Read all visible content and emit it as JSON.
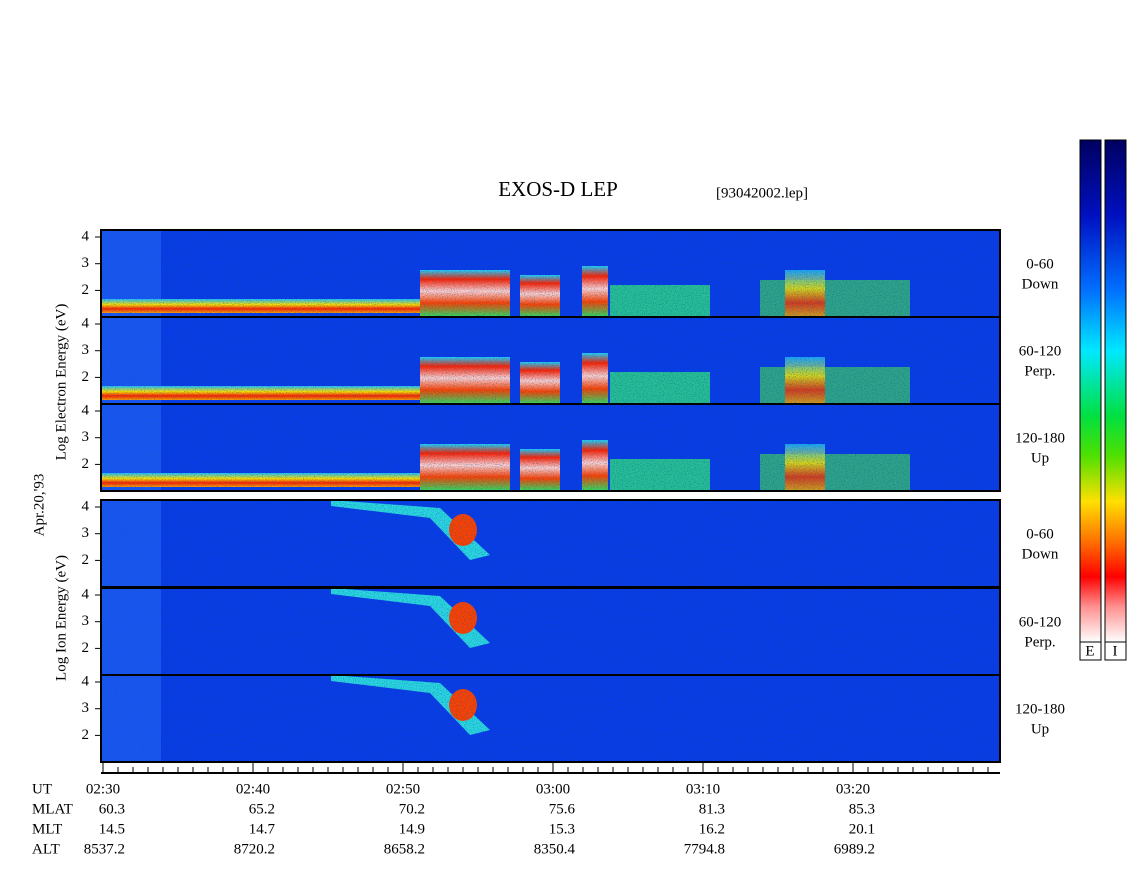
{
  "title": "EXOS-D LEP",
  "file": "[93042002.lep]",
  "date": "Apr.20,'93",
  "electron": {
    "axis_label": "Log Electron Energy (eV)",
    "panels": [
      {
        "range": "0-60",
        "direction": "Down",
        "ticks": [
          4,
          3,
          2
        ]
      },
      {
        "range": "60-120",
        "direction": "Perp.",
        "ticks": [
          4,
          3,
          2
        ]
      },
      {
        "range": "120-180",
        "direction": "Up",
        "ticks": [
          4,
          3,
          2
        ]
      }
    ]
  },
  "ion": {
    "axis_label": "Log Ion Energy (eV)",
    "panels": [
      {
        "range": "0-60",
        "direction": "Down",
        "ticks": [
          4,
          3,
          2
        ]
      },
      {
        "range": "60-120",
        "direction": "Perp.",
        "ticks": [
          4,
          3,
          2
        ]
      },
      {
        "range": "120-180",
        "direction": "Up",
        "ticks": [
          4,
          3,
          2
        ]
      }
    ]
  },
  "orbit": [
    {
      "label": "UT",
      "values": [
        "02:30",
        "02:40",
        "02:50",
        "03:00",
        "03:10",
        "03:20"
      ]
    },
    {
      "label": "MLAT",
      "values": [
        60.3,
        65.2,
        70.2,
        75.6,
        81.3,
        85.3
      ]
    },
    {
      "label": "MLT",
      "values": [
        14.5,
        14.7,
        14.9,
        15.3,
        16.2,
        20.1
      ]
    },
    {
      "label": "ALT",
      "values": [
        8537.2,
        8720.2,
        8658.2,
        8350.4,
        7794.8,
        6989.2
      ]
    }
  ],
  "colorbar": {
    "labels": [
      "E",
      "I"
    ]
  }
}
